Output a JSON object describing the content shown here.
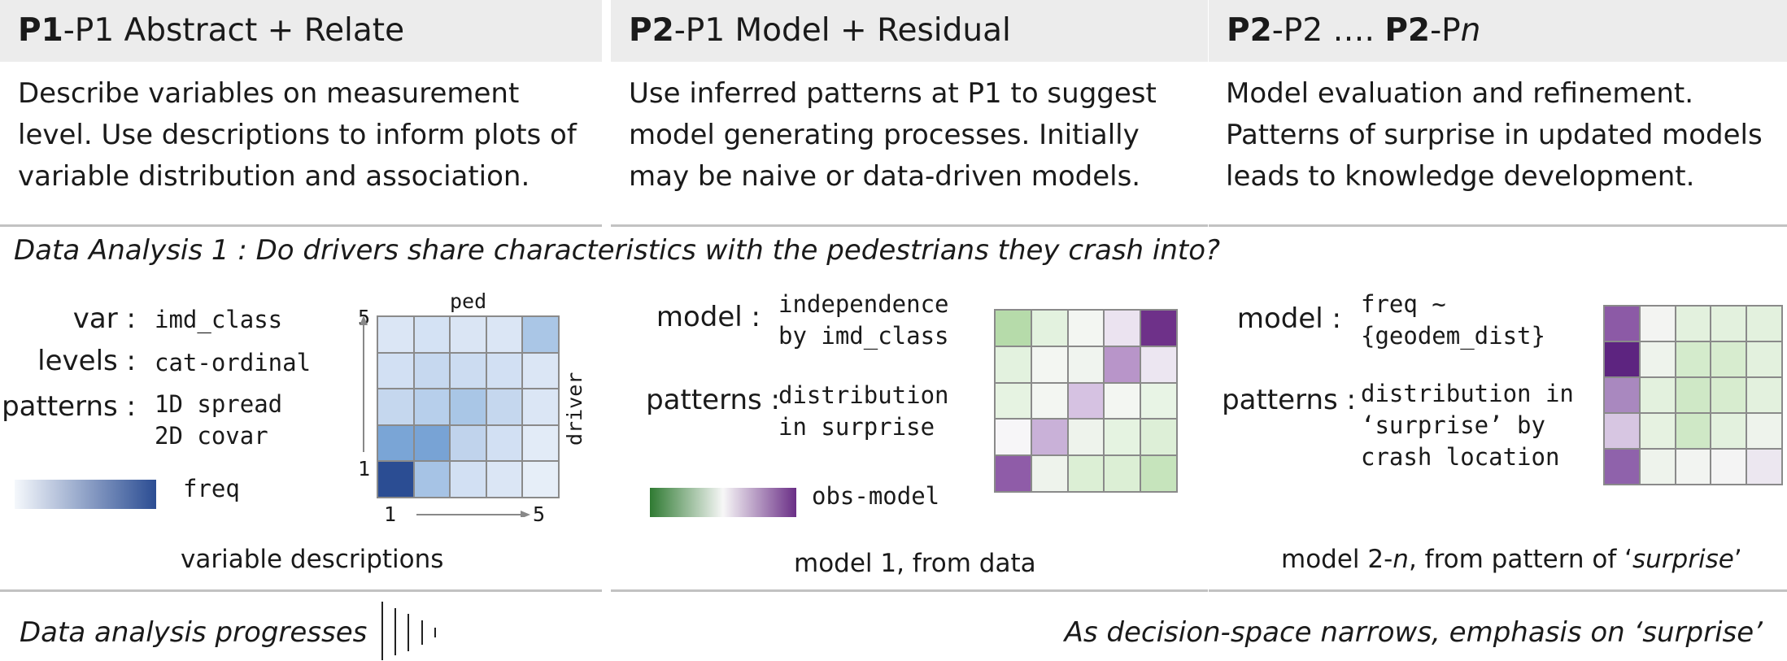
{
  "columns": [
    {
      "header_bold": "P1",
      "header_rest": "-P1 Abstract + Relate",
      "description": "Describe variables on measurement\nlevel. Use descriptions to inform plots of\nvariable distribution and association."
    },
    {
      "header_bold": "P2",
      "header_rest": "-P1 Model + Residual",
      "description": "Use inferred patterns at P1 to suggest\nmodel generating processes. Initially\nmay be naive or data-driven models."
    },
    {
      "header_bold": "P2",
      "header_rest": "-P2 …. ",
      "header_bold2": "P2",
      "header_rest2": "-P",
      "header_italic": "n",
      "description": "Model evaluation and refinement.\nPatterns of surprise in updated models\nleads to knowledge development."
    }
  ],
  "question": "Data Analysis 1 : Do drivers share characteristics with the pedestrians they crash into?",
  "panel1": {
    "labels": {
      "var": "var :",
      "levels": "levels :",
      "patterns": "patterns :"
    },
    "values": {
      "var": "imd_class",
      "levels": "cat-ordinal",
      "patterns": "1D spread\n2D covar"
    },
    "legend_label": "freq",
    "axis": {
      "x_label": "ped",
      "y_label": "driver",
      "x_min": "1",
      "x_max": "5",
      "y_min": "1",
      "y_max": "5"
    },
    "caption": "variable descriptions",
    "heatmap_colors": [
      [
        "#dbe6f5",
        "#d4e2f4",
        "#dae5f4",
        "#dbe6f5",
        "#aac6e6"
      ],
      [
        "#d2e0f3",
        "#c6d8ef",
        "#ccdcf1",
        "#d2e0f3",
        "#dbe6f5"
      ],
      [
        "#c5d7ee",
        "#b7cfeb",
        "#a9c6e6",
        "#c5d7ee",
        "#dbe6f5"
      ],
      [
        "#7aa5d6",
        "#78a3d5",
        "#c0d3ec",
        "#d2e0f3",
        "#e2ebf7"
      ],
      [
        "#2b4d93",
        "#a6c3e5",
        "#d2e0f3",
        "#dbe6f5",
        "#e6eef8"
      ]
    ],
    "legend_colors": [
      "#f5f8fc",
      "#2b4d93"
    ]
  },
  "panel2": {
    "labels": {
      "model": "model :",
      "patterns": "patterns :"
    },
    "values": {
      "model": "independence\nby imd_class",
      "patterns": "distribution\nin surprise"
    },
    "legend_label": "obs-model",
    "caption": "model 1, from data",
    "heatmap_colors": [
      [
        "#b6dbaa",
        "#e3f2df",
        "#f3f6f2",
        "#ebe3f0",
        "#6e3189"
      ],
      [
        "#e3f2df",
        "#f3f6f2",
        "#f0f4ef",
        "#b895c9",
        "#ece6f1"
      ],
      [
        "#e6f3e2",
        "#f3f6f2",
        "#d6c2e2",
        "#f3f6f2",
        "#e8f4e5"
      ],
      [
        "#f7f6f8",
        "#c9b1d8",
        "#eef3ec",
        "#e5f3e1",
        "#ddefd7"
      ],
      [
        "#8f5ca8",
        "#eef3ec",
        "#dcefd5",
        "#dcefd5",
        "#c6e4bc"
      ]
    ],
    "legend_colors": [
      "#2f7a32",
      "#f7f7f7",
      "#6a2e86"
    ]
  },
  "panel3": {
    "labels": {
      "model": "model :",
      "patterns": "patterns :"
    },
    "values": {
      "model": "freq ~\n{geodem_dist}",
      "patterns": "distribution in\n‘surprise’ by\ncrash location"
    },
    "caption_pre": "model 2-",
    "caption_italic_n": "n",
    "caption_mid": ", from pattern of ‘",
    "caption_italic": "surprise",
    "caption_post": "’",
    "heatmap_colors": [
      [
        "#8c5aa6",
        "#f3f4f2",
        "#e3f1de",
        "#e3f1de",
        "#e3f1de"
      ],
      [
        "#5d2480",
        "#eef3ec",
        "#d4ebcc",
        "#d7eccf",
        "#e3f1de"
      ],
      [
        "#a988bf",
        "#e3f1de",
        "#cfe8c6",
        "#d7eccf",
        "#e3f1de"
      ],
      [
        "#d7c6e2",
        "#e6f2e1",
        "#cfe8c6",
        "#e3f1de",
        "#eef3ec"
      ],
      [
        "#8f62ab",
        "#eef3ec",
        "#f2f4f1",
        "#f4f4f4",
        "#ece7f0"
      ]
    ]
  },
  "footer": {
    "left": "Data analysis progresses",
    "right": "As decision-space narrows,  emphasis on ‘surprise’"
  }
}
